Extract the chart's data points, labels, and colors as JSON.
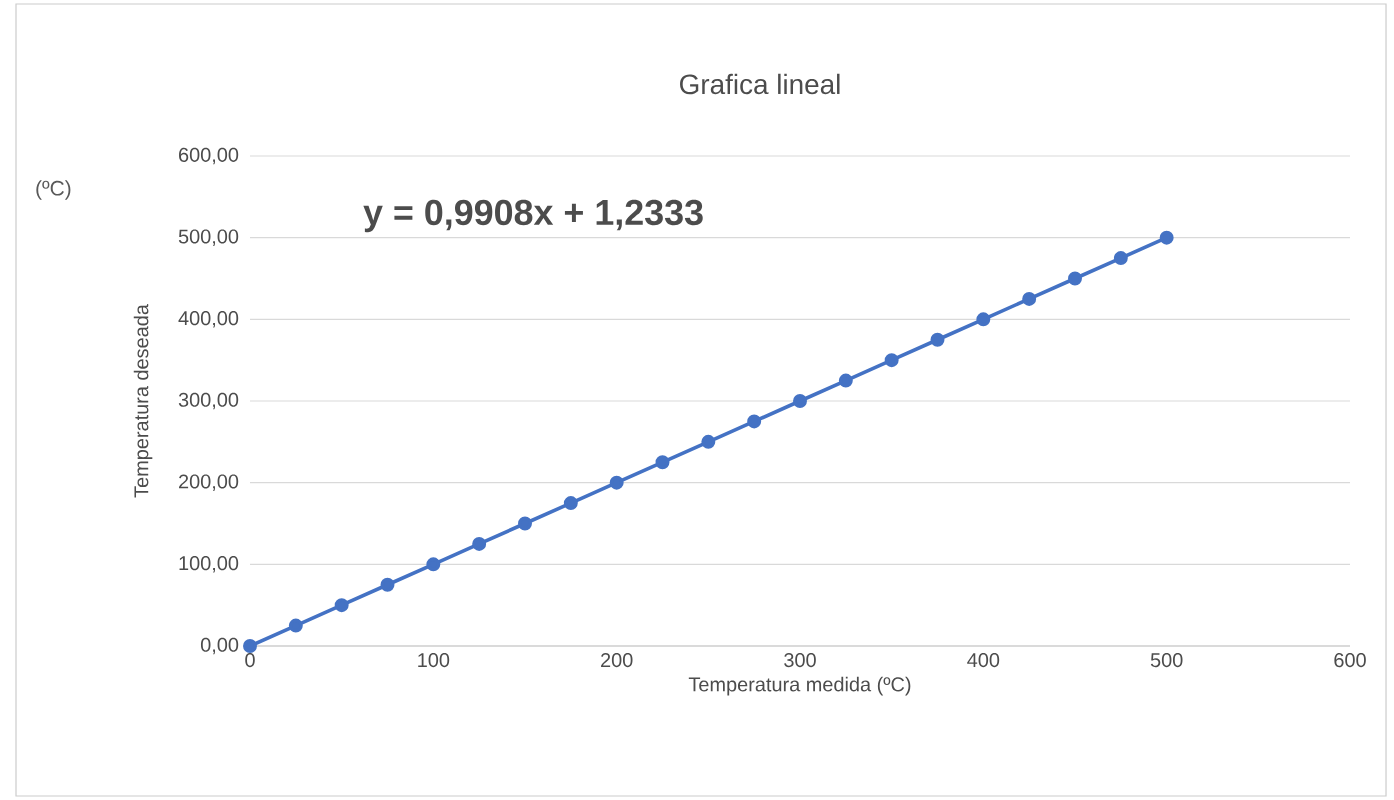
{
  "chart_data": {
    "type": "line",
    "title": "Grafica lineal",
    "xlabel": "Temperatura medida  (ºC)",
    "ylabel": "Temperatura deseada",
    "annotations": [
      "y = 0,9908x + 1,2333",
      "(ºC)"
    ],
    "x": [
      0,
      25,
      50,
      75,
      100,
      125,
      150,
      175,
      200,
      225,
      250,
      275,
      300,
      325,
      350,
      375,
      400,
      425,
      450,
      475,
      500
    ],
    "series": [
      {
        "color": "#4472c4",
        "values": [
          0,
          25,
          50,
          75,
          100,
          125,
          150,
          175,
          200,
          225,
          250,
          275,
          300,
          325,
          350,
          375,
          400,
          425,
          450,
          475,
          500
        ]
      }
    ],
    "xlim": [
      0,
      600
    ],
    "xticks": [
      0,
      100,
      200,
      300,
      400,
      500,
      600
    ],
    "ylim": [
      0,
      600
    ],
    "yticks": [
      {
        "value": 0,
        "label": "0,00"
      },
      {
        "value": 100,
        "label": "100,00"
      },
      {
        "value": 200,
        "label": "200,00"
      },
      {
        "value": 300,
        "label": "300,00"
      },
      {
        "value": 400,
        "label": "400,00"
      },
      {
        "value": 500,
        "label": "500,00"
      },
      {
        "value": 600,
        "label": "600,00"
      }
    ],
    "grid": "y",
    "marker": "circle",
    "line_style": "solid"
  }
}
